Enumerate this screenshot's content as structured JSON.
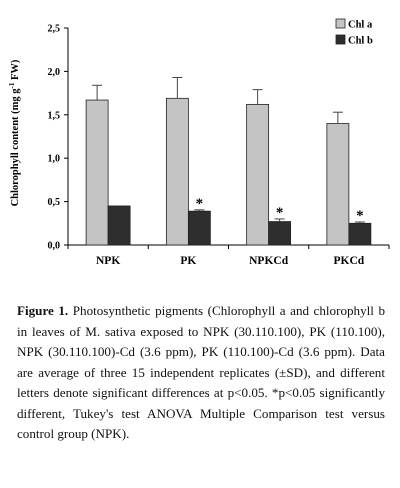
{
  "chart_data": {
    "type": "bar",
    "categories": [
      "NPK",
      "PK",
      "NPKCd",
      "PKCd"
    ],
    "series": [
      {
        "name": "Chl a",
        "color": "#c4c4c4",
        "values": [
          1.67,
          1.69,
          1.62,
          1.4
        ],
        "errors": [
          0.17,
          0.24,
          0.17,
          0.13
        ],
        "marks": [
          "",
          "",
          "",
          ""
        ]
      },
      {
        "name": "Chl b",
        "color": "#2e2e2e",
        "values": [
          0.45,
          0.39,
          0.27,
          0.25
        ],
        "errors": [
          0.0,
          0.015,
          0.03,
          0.015
        ],
        "marks": [
          "",
          "*",
          "*",
          "*"
        ]
      }
    ],
    "ylabel_main": "Chlorophyll content (mg g",
    "ylabel_sup": "-1",
    "ylabel_tail": " FW)",
    "ylim": [
      0,
      2.5
    ],
    "yticks": [
      "0,0",
      "0,5",
      "1,0",
      "1,5",
      "2,0",
      "2,5"
    ],
    "legend_position": "top-right",
    "grid": false
  },
  "caption": {
    "label": "Figure 1.",
    "text": "Photosynthetic pigments (Chlorophyll a and chlorophyll b in leaves of M. sativa exposed to NPK (30.110.100), PK (110.100), NPK (30.110.100)-Cd (3.6 ppm), PK (110.100)-Cd (3.6 ppm). Data are average of three 15 independent replicates (±SD), and different letters denote significant differences at p<0.05. *p<0.05 significantly different, Tukey's test ANOVA Multiple Comparison test versus control group (NPK)."
  }
}
